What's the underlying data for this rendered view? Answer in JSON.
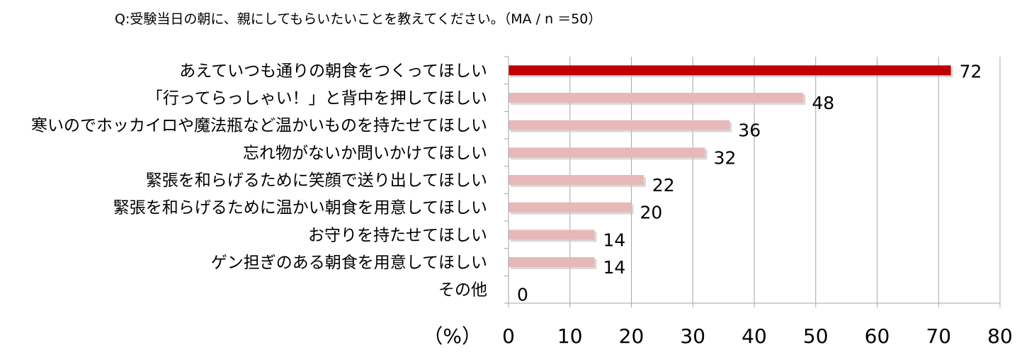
{
  "chart_data": {
    "type": "bar",
    "orientation": "horizontal",
    "title": "Q:受験当日の朝に、親にしてもらいたいことを教えてください。（MA / n ＝50）",
    "unit_label": "（%）",
    "categories": [
      "あえていつも通りの朝食をつくってほしい",
      "「行ってらっしゃい！」と背中を押してほしい",
      "寒いのでホッカイロや魔法瓶など温かいものを持たせてほしい",
      "忘れ物がないか問いかけてほしい",
      "緊張を和らげるために笑顔で送り出してほしい",
      "緊張を和らげるために温かい朝食を用意してほしい",
      "お守りを持たせてほしい",
      "ゲン担ぎのある朝食を用意してほしい",
      "その他"
    ],
    "values": [
      72,
      48,
      36,
      32,
      22,
      20,
      14,
      14,
      0
    ],
    "value_labels": [
      "72",
      "48",
      "36",
      "32",
      "22",
      "20",
      "14",
      "14",
      "0"
    ],
    "xlim": [
      0,
      80
    ],
    "xticks": [
      0,
      10,
      20,
      30,
      40,
      50,
      60,
      70,
      80
    ],
    "tick_labels": [
      "0",
      "10",
      "20",
      "30",
      "40",
      "50",
      "60",
      "70",
      "80"
    ],
    "grid": true,
    "colors": {
      "highlight_bar": "#c00000",
      "bar": "#e6b9b8",
      "grid": "#a6a6a6"
    }
  }
}
